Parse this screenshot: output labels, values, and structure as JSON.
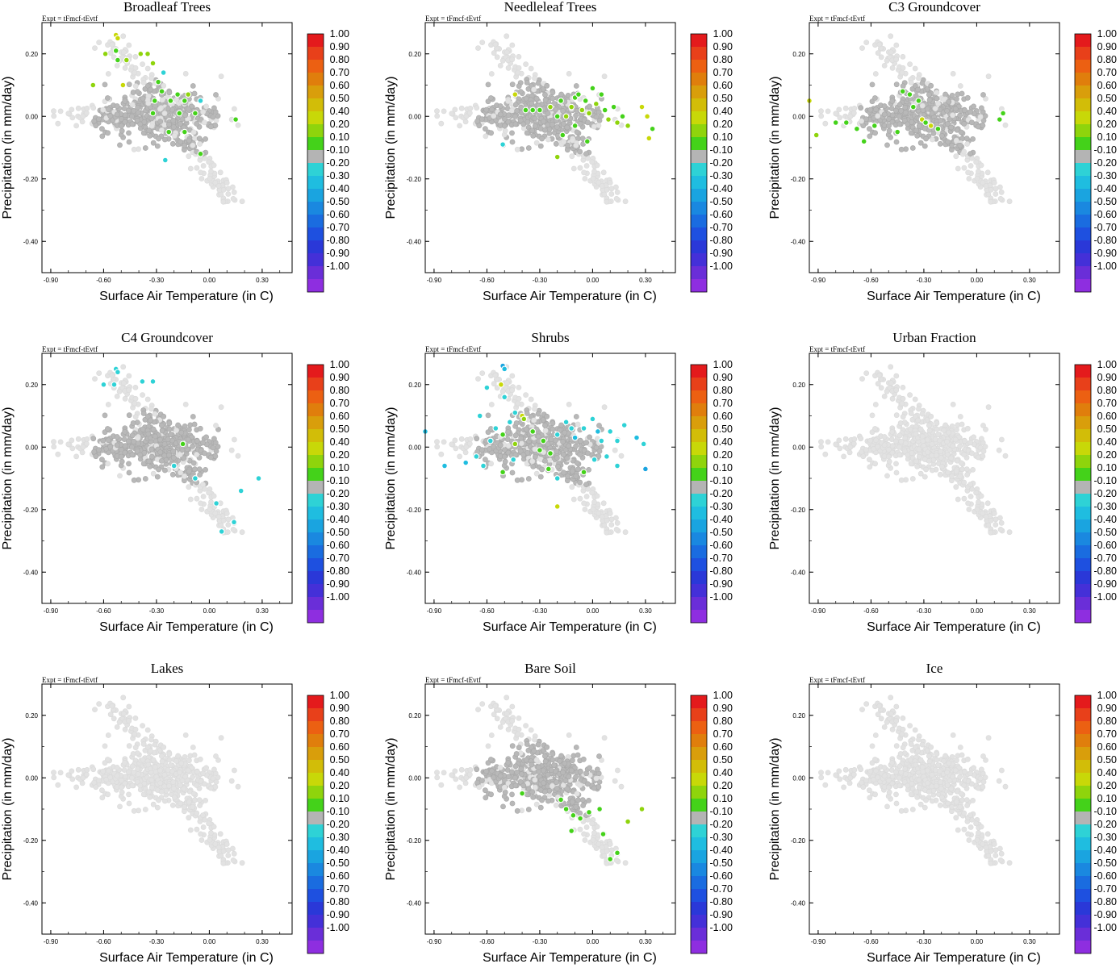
{
  "chart_data": {
    "type": "scatter",
    "layout": "3x3 small multiples",
    "xlabel": "Surface Air Temperature (in C)",
    "ylabel": "Precipitation (in mm/day)",
    "annotation": "Expt = tFmcf-tEvtf",
    "xlim": [
      -0.95,
      0.47
    ],
    "ylim": [
      -0.5,
      0.3
    ],
    "x_ticks": [
      -0.9,
      -0.6,
      -0.3,
      0.0,
      0.3
    ],
    "x_tick_labels": [
      "-0.90",
      "-0.60",
      "-0.30",
      "0.00",
      "0.30"
    ],
    "y_ticks": [
      0.2,
      0.0,
      -0.2,
      -0.4
    ],
    "y_tick_labels": [
      "0.20",
      "0.00",
      "-0.20",
      "-0.40"
    ],
    "colorbar": {
      "labels": [
        "1.00",
        "0.90",
        "0.80",
        "0.70",
        "0.60",
        "0.50",
        "0.40",
        "0.20",
        "0.10",
        "-0.10",
        "-0.20",
        "-0.30",
        "-0.40",
        "-0.50",
        "-0.60",
        "-0.70",
        "-0.80",
        "-0.90",
        "-1.00"
      ],
      "colors": [
        "#e41a1c",
        "#e8401a",
        "#ec6012",
        "#e07e0c",
        "#d99e0b",
        "#d2bd08",
        "#c8d808",
        "#8fd40c",
        "#44d21a",
        "#b4b4b4",
        "#2ed2d6",
        "#1fbde0",
        "#1aa4e0",
        "#1a88e0",
        "#1a6ce0",
        "#1e50e0",
        "#2a38d8",
        "#4430d8",
        "#6a2ed8",
        "#8e2ee0"
      ]
    },
    "panels": [
      {
        "title": "Broadleaf Trees",
        "colored_points": [
          {
            "x": -0.53,
            "y": 0.26,
            "c": 0.4
          },
          {
            "x": -0.52,
            "y": 0.25,
            "c": 0.4
          },
          {
            "x": -0.59,
            "y": 0.2,
            "c": 0.2
          },
          {
            "x": -0.53,
            "y": 0.21,
            "c": 0.1
          },
          {
            "x": -0.52,
            "y": 0.18,
            "c": 0.1
          },
          {
            "x": -0.47,
            "y": 0.18,
            "c": 0.2
          },
          {
            "x": -0.39,
            "y": 0.2,
            "c": 0.2
          },
          {
            "x": -0.35,
            "y": 0.2,
            "c": 0.2
          },
          {
            "x": -0.32,
            "y": 0.17,
            "c": 0.2
          },
          {
            "x": -0.26,
            "y": 0.14,
            "c": -0.2
          },
          {
            "x": -0.66,
            "y": 0.1,
            "c": 0.2
          },
          {
            "x": -0.49,
            "y": 0.1,
            "c": 0.4
          },
          {
            "x": -0.29,
            "y": 0.11,
            "c": 0.1
          },
          {
            "x": -0.27,
            "y": 0.08,
            "c": 0.1
          },
          {
            "x": -0.18,
            "y": 0.07,
            "c": 0.1
          },
          {
            "x": -0.12,
            "y": 0.07,
            "c": 0.2
          },
          {
            "x": -0.31,
            "y": 0.05,
            "c": 0.1
          },
          {
            "x": -0.22,
            "y": 0.05,
            "c": 0.1
          },
          {
            "x": -0.14,
            "y": 0.05,
            "c": 0.1
          },
          {
            "x": -0.05,
            "y": 0.05,
            "c": -0.2
          },
          {
            "x": -0.17,
            "y": 0.01,
            "c": 0.1
          },
          {
            "x": -0.32,
            "y": 0.01,
            "c": 0.1
          },
          {
            "x": -0.08,
            "y": 0.01,
            "c": 0.1
          },
          {
            "x": 0.15,
            "y": -0.01,
            "c": 0.1
          },
          {
            "x": -0.23,
            "y": -0.05,
            "c": 0.1
          },
          {
            "x": -0.14,
            "y": -0.05,
            "c": 0.1
          },
          {
            "x": -0.05,
            "y": -0.12,
            "c": 0.1
          },
          {
            "x": -0.25,
            "y": -0.14,
            "c": -0.2
          }
        ]
      },
      {
        "title": "Needleleaf Trees",
        "colored_points": [
          {
            "x": -0.44,
            "y": 0.07,
            "c": 0.4
          },
          {
            "x": -0.38,
            "y": 0.02,
            "c": 0.1
          },
          {
            "x": -0.34,
            "y": 0.02,
            "c": 0.1
          },
          {
            "x": -0.3,
            "y": 0.02,
            "c": 0.1
          },
          {
            "x": -0.24,
            "y": 0.03,
            "c": 0.2
          },
          {
            "x": -0.2,
            "y": 0.0,
            "c": 0.1
          },
          {
            "x": -0.18,
            "y": 0.05,
            "c": 0.1
          },
          {
            "x": -0.15,
            "y": 0.0,
            "c": 0.2
          },
          {
            "x": -0.12,
            "y": 0.03,
            "c": 0.2
          },
          {
            "x": -0.1,
            "y": 0.06,
            "c": 0.1
          },
          {
            "x": -0.08,
            "y": 0.07,
            "c": 0.1
          },
          {
            "x": -0.06,
            "y": 0.02,
            "c": 0.2
          },
          {
            "x": -0.04,
            "y": 0.05,
            "c": 0.1
          },
          {
            "x": -0.02,
            "y": 0.01,
            "c": 0.2
          },
          {
            "x": 0.0,
            "y": 0.09,
            "c": 0.1
          },
          {
            "x": 0.02,
            "y": 0.04,
            "c": 0.2
          },
          {
            "x": 0.05,
            "y": 0.07,
            "c": 0.1
          },
          {
            "x": 0.07,
            "y": 0.02,
            "c": 0.1
          },
          {
            "x": 0.09,
            "y": -0.01,
            "c": 0.2
          },
          {
            "x": 0.12,
            "y": 0.03,
            "c": 0.1
          },
          {
            "x": 0.14,
            "y": -0.02,
            "c": 0.2
          },
          {
            "x": 0.17,
            "y": 0.0,
            "c": 0.1
          },
          {
            "x": 0.2,
            "y": -0.03,
            "c": 0.2
          },
          {
            "x": 0.28,
            "y": 0.03,
            "c": 0.4
          },
          {
            "x": 0.31,
            "y": 0.0,
            "c": 0.4
          },
          {
            "x": 0.34,
            "y": -0.04,
            "c": 0.1
          },
          {
            "x": 0.32,
            "y": -0.07,
            "c": 0.4
          },
          {
            "x": -0.03,
            "y": -0.08,
            "c": 0.1
          },
          {
            "x": -0.17,
            "y": -0.06,
            "c": 0.1
          },
          {
            "x": -0.2,
            "y": -0.13,
            "c": 0.2
          },
          {
            "x": -0.51,
            "y": -0.09,
            "c": -0.2
          },
          {
            "x": -0.1,
            "y": -0.03,
            "c": 0.1
          }
        ]
      },
      {
        "title": "C3 Groundcover",
        "colored_points": [
          {
            "x": -0.95,
            "y": 0.05,
            "c": 0.4
          },
          {
            "x": -0.91,
            "y": -0.06,
            "c": 0.2
          },
          {
            "x": -0.8,
            "y": -0.02,
            "c": 0.1
          },
          {
            "x": -0.74,
            "y": -0.02,
            "c": 0.1
          },
          {
            "x": -0.68,
            "y": -0.04,
            "c": 0.1
          },
          {
            "x": -0.64,
            "y": -0.08,
            "c": 0.1
          },
          {
            "x": -0.58,
            "y": -0.03,
            "c": 0.1
          },
          {
            "x": -0.42,
            "y": 0.08,
            "c": 0.1
          },
          {
            "x": -0.38,
            "y": 0.07,
            "c": 0.1
          },
          {
            "x": -0.36,
            "y": 0.03,
            "c": 0.1
          },
          {
            "x": -0.33,
            "y": 0.05,
            "c": 0.1
          },
          {
            "x": -0.31,
            "y": -0.01,
            "c": 0.4
          },
          {
            "x": -0.29,
            "y": -0.02,
            "c": 0.1
          },
          {
            "x": -0.26,
            "y": -0.03,
            "c": 0.4
          },
          {
            "x": -0.22,
            "y": -0.04,
            "c": 0.1
          },
          {
            "x": 0.13,
            "y": -0.01,
            "c": 0.1
          },
          {
            "x": 0.15,
            "y": 0.01,
            "c": 0.1
          },
          {
            "x": -0.45,
            "y": -0.05,
            "c": 0.1
          }
        ]
      },
      {
        "title": "C4 Groundcover",
        "colored_points": [
          {
            "x": -0.6,
            "y": 0.2,
            "c": -0.2
          },
          {
            "x": -0.53,
            "y": 0.25,
            "c": -0.2
          },
          {
            "x": -0.52,
            "y": 0.24,
            "c": -0.2
          },
          {
            "x": -0.54,
            "y": 0.2,
            "c": -0.2
          },
          {
            "x": -0.38,
            "y": 0.21,
            "c": -0.2
          },
          {
            "x": -0.32,
            "y": 0.21,
            "c": -0.2
          },
          {
            "x": -0.15,
            "y": 0.01,
            "c": 0.1
          },
          {
            "x": -0.08,
            "y": -0.1,
            "c": -0.2
          },
          {
            "x": 0.04,
            "y": -0.18,
            "c": -0.2
          },
          {
            "x": 0.18,
            "y": -0.14,
            "c": -0.2
          },
          {
            "x": 0.28,
            "y": -0.1,
            "c": -0.2
          },
          {
            "x": 0.14,
            "y": -0.24,
            "c": -0.2
          },
          {
            "x": 0.07,
            "y": -0.27,
            "c": -0.2
          },
          {
            "x": -0.2,
            "y": -0.06,
            "c": -0.2
          }
        ]
      },
      {
        "title": "Shrubs",
        "colored_points": [
          {
            "x": -0.95,
            "y": 0.05,
            "c": -0.3
          },
          {
            "x": -0.84,
            "y": -0.06,
            "c": -0.3
          },
          {
            "x": -0.72,
            "y": -0.05,
            "c": -0.3
          },
          {
            "x": -0.64,
            "y": 0.1,
            "c": -0.2
          },
          {
            "x": -0.66,
            "y": -0.03,
            "c": -0.2
          },
          {
            "x": -0.58,
            "y": 0.02,
            "c": -0.2
          },
          {
            "x": -0.55,
            "y": 0.06,
            "c": -0.2
          },
          {
            "x": -0.62,
            "y": -0.06,
            "c": -0.2
          },
          {
            "x": -0.51,
            "y": 0.26,
            "c": -0.4
          },
          {
            "x": -0.5,
            "y": 0.25,
            "c": -0.3
          },
          {
            "x": -0.6,
            "y": 0.19,
            "c": -0.2
          },
          {
            "x": -0.52,
            "y": 0.2,
            "c": 0.4
          },
          {
            "x": -0.5,
            "y": 0.16,
            "c": -0.2
          },
          {
            "x": -0.47,
            "y": 0.08,
            "c": -0.2
          },
          {
            "x": -0.44,
            "y": 0.11,
            "c": -0.2
          },
          {
            "x": -0.4,
            "y": 0.1,
            "c": 0.4
          },
          {
            "x": -0.39,
            "y": 0.09,
            "c": 0.2
          },
          {
            "x": -0.45,
            "y": -0.04,
            "c": -0.2
          },
          {
            "x": -0.51,
            "y": -0.08,
            "c": 0.1
          },
          {
            "x": -0.51,
            "y": 0.04,
            "c": 0.1
          },
          {
            "x": -0.44,
            "y": 0.01,
            "c": 0.2
          },
          {
            "x": -0.34,
            "y": 0.05,
            "c": 0.1
          },
          {
            "x": -0.28,
            "y": 0.02,
            "c": 0.1
          },
          {
            "x": -0.24,
            "y": -0.02,
            "c": 0.1
          },
          {
            "x": -0.3,
            "y": -0.01,
            "c": 0.1
          },
          {
            "x": -0.2,
            "y": 0.04,
            "c": -0.2
          },
          {
            "x": -0.15,
            "y": 0.08,
            "c": -0.2
          },
          {
            "x": -0.12,
            "y": 0.06,
            "c": -0.2
          },
          {
            "x": -0.1,
            "y": 0.03,
            "c": -0.3
          },
          {
            "x": -0.05,
            "y": 0.06,
            "c": -0.2
          },
          {
            "x": 0.0,
            "y": 0.09,
            "c": -0.2
          },
          {
            "x": 0.03,
            "y": 0.05,
            "c": -0.3
          },
          {
            "x": 0.05,
            "y": 0.02,
            "c": -0.2
          },
          {
            "x": 0.1,
            "y": 0.05,
            "c": -0.2
          },
          {
            "x": 0.14,
            "y": 0.02,
            "c": -0.2
          },
          {
            "x": 0.18,
            "y": 0.07,
            "c": -0.2
          },
          {
            "x": 0.25,
            "y": 0.03,
            "c": -0.3
          },
          {
            "x": 0.29,
            "y": 0.01,
            "c": -0.2
          },
          {
            "x": 0.3,
            "y": -0.07,
            "c": -0.4
          },
          {
            "x": 0.08,
            "y": -0.03,
            "c": -0.2
          },
          {
            "x": -0.25,
            "y": -0.07,
            "c": 0.1
          },
          {
            "x": -0.2,
            "y": -0.1,
            "c": -0.2
          },
          {
            "x": -0.05,
            "y": -0.08,
            "c": 0.1
          },
          {
            "x": -0.2,
            "y": -0.19,
            "c": 0.4
          },
          {
            "x": 0.14,
            "y": -0.06,
            "c": -0.2
          },
          {
            "x": 0.01,
            "y": -0.04,
            "c": -0.2
          }
        ]
      },
      {
        "title": "Urban Fraction",
        "colored_points": []
      },
      {
        "title": "Lakes",
        "colored_points": []
      },
      {
        "title": "Bare Soil",
        "colored_points": [
          {
            "x": -0.4,
            "y": -0.05,
            "c": 0.1
          },
          {
            "x": -0.18,
            "y": -0.07,
            "c": 0.1
          },
          {
            "x": -0.15,
            "y": -0.1,
            "c": 0.1
          },
          {
            "x": -0.11,
            "y": -0.12,
            "c": 0.1
          },
          {
            "x": -0.07,
            "y": -0.13,
            "c": 0.1
          },
          {
            "x": -0.02,
            "y": -0.11,
            "c": 0.1
          },
          {
            "x": 0.04,
            "y": -0.1,
            "c": 0.1
          },
          {
            "x": 0.06,
            "y": -0.18,
            "c": 0.1
          },
          {
            "x": 0.1,
            "y": -0.26,
            "c": 0.1
          },
          {
            "x": 0.14,
            "y": -0.24,
            "c": 0.1
          },
          {
            "x": 0.2,
            "y": -0.14,
            "c": 0.2
          },
          {
            "x": 0.28,
            "y": -0.1,
            "c": 0.2
          },
          {
            "x": -0.12,
            "y": -0.17,
            "c": 0.1
          }
        ]
      },
      {
        "title": "Ice",
        "colored_points": []
      }
    ]
  }
}
